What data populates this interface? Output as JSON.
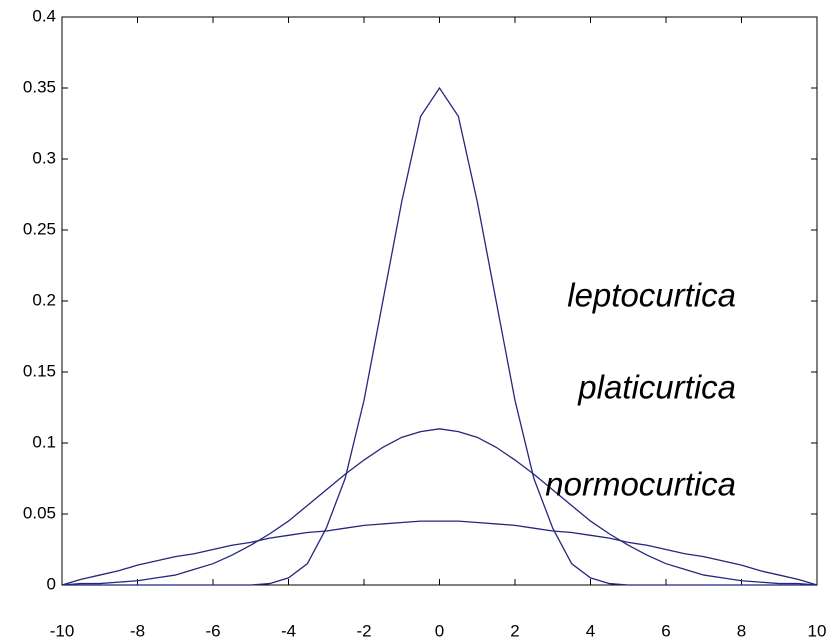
{
  "chart_data": {
    "type": "line",
    "x": [
      -10,
      -9.5,
      -9,
      -8.5,
      -8,
      -7.5,
      -7,
      -6.5,
      -6,
      -5.5,
      -5,
      -4.5,
      -4,
      -3.5,
      -3,
      -2.5,
      -2,
      -1.5,
      -1,
      -0.5,
      0,
      0.5,
      1,
      1.5,
      2,
      2.5,
      3,
      3.5,
      4,
      4.5,
      5,
      5.5,
      6,
      6.5,
      7,
      7.5,
      8,
      8.5,
      9,
      9.5,
      10
    ],
    "series": [
      {
        "name": "leptocurtica",
        "color": "#26267f",
        "values": [
          0,
          0,
          0,
          0,
          0,
          0,
          0,
          0,
          0,
          0,
          0,
          0.001,
          0.005,
          0.015,
          0.04,
          0.075,
          0.13,
          0.2,
          0.27,
          0.33,
          0.35,
          0.33,
          0.27,
          0.2,
          0.13,
          0.075,
          0.04,
          0.015,
          0.005,
          0.001,
          0,
          0,
          0,
          0,
          0,
          0,
          0,
          0,
          0,
          0,
          0
        ]
      },
      {
        "name": "platicurtica",
        "color": "#26267f",
        "values": [
          0,
          0.004,
          0.007,
          0.01,
          0.014,
          0.017,
          0.02,
          0.022,
          0.025,
          0.028,
          0.03,
          0.033,
          0.035,
          0.037,
          0.038,
          0.04,
          0.042,
          0.043,
          0.044,
          0.045,
          0.045,
          0.045,
          0.044,
          0.043,
          0.042,
          0.04,
          0.038,
          0.037,
          0.035,
          0.033,
          0.03,
          0.028,
          0.025,
          0.022,
          0.02,
          0.017,
          0.014,
          0.01,
          0.007,
          0.004,
          0
        ]
      },
      {
        "name": "normocurtica",
        "color": "#26267f",
        "values": [
          0,
          0.001,
          0.001,
          0.002,
          0.003,
          0.005,
          0.007,
          0.011,
          0.015,
          0.021,
          0.028,
          0.036,
          0.045,
          0.056,
          0.067,
          0.078,
          0.088,
          0.097,
          0.104,
          0.108,
          0.11,
          0.108,
          0.104,
          0.097,
          0.088,
          0.078,
          0.067,
          0.056,
          0.045,
          0.036,
          0.028,
          0.021,
          0.015,
          0.011,
          0.007,
          0.005,
          0.003,
          0.002,
          0.001,
          0.001,
          0
        ]
      }
    ],
    "xlim": [
      -10,
      10
    ],
    "xticks": [
      -10,
      -8,
      -6,
      -4,
      -2,
      0,
      2,
      4,
      6,
      8,
      10
    ],
    "ylim": [
      0,
      0.4
    ],
    "yticks": [
      0,
      0.05,
      0.1,
      0.15,
      0.2,
      0.25,
      0.3,
      0.35,
      0.4
    ]
  }
}
